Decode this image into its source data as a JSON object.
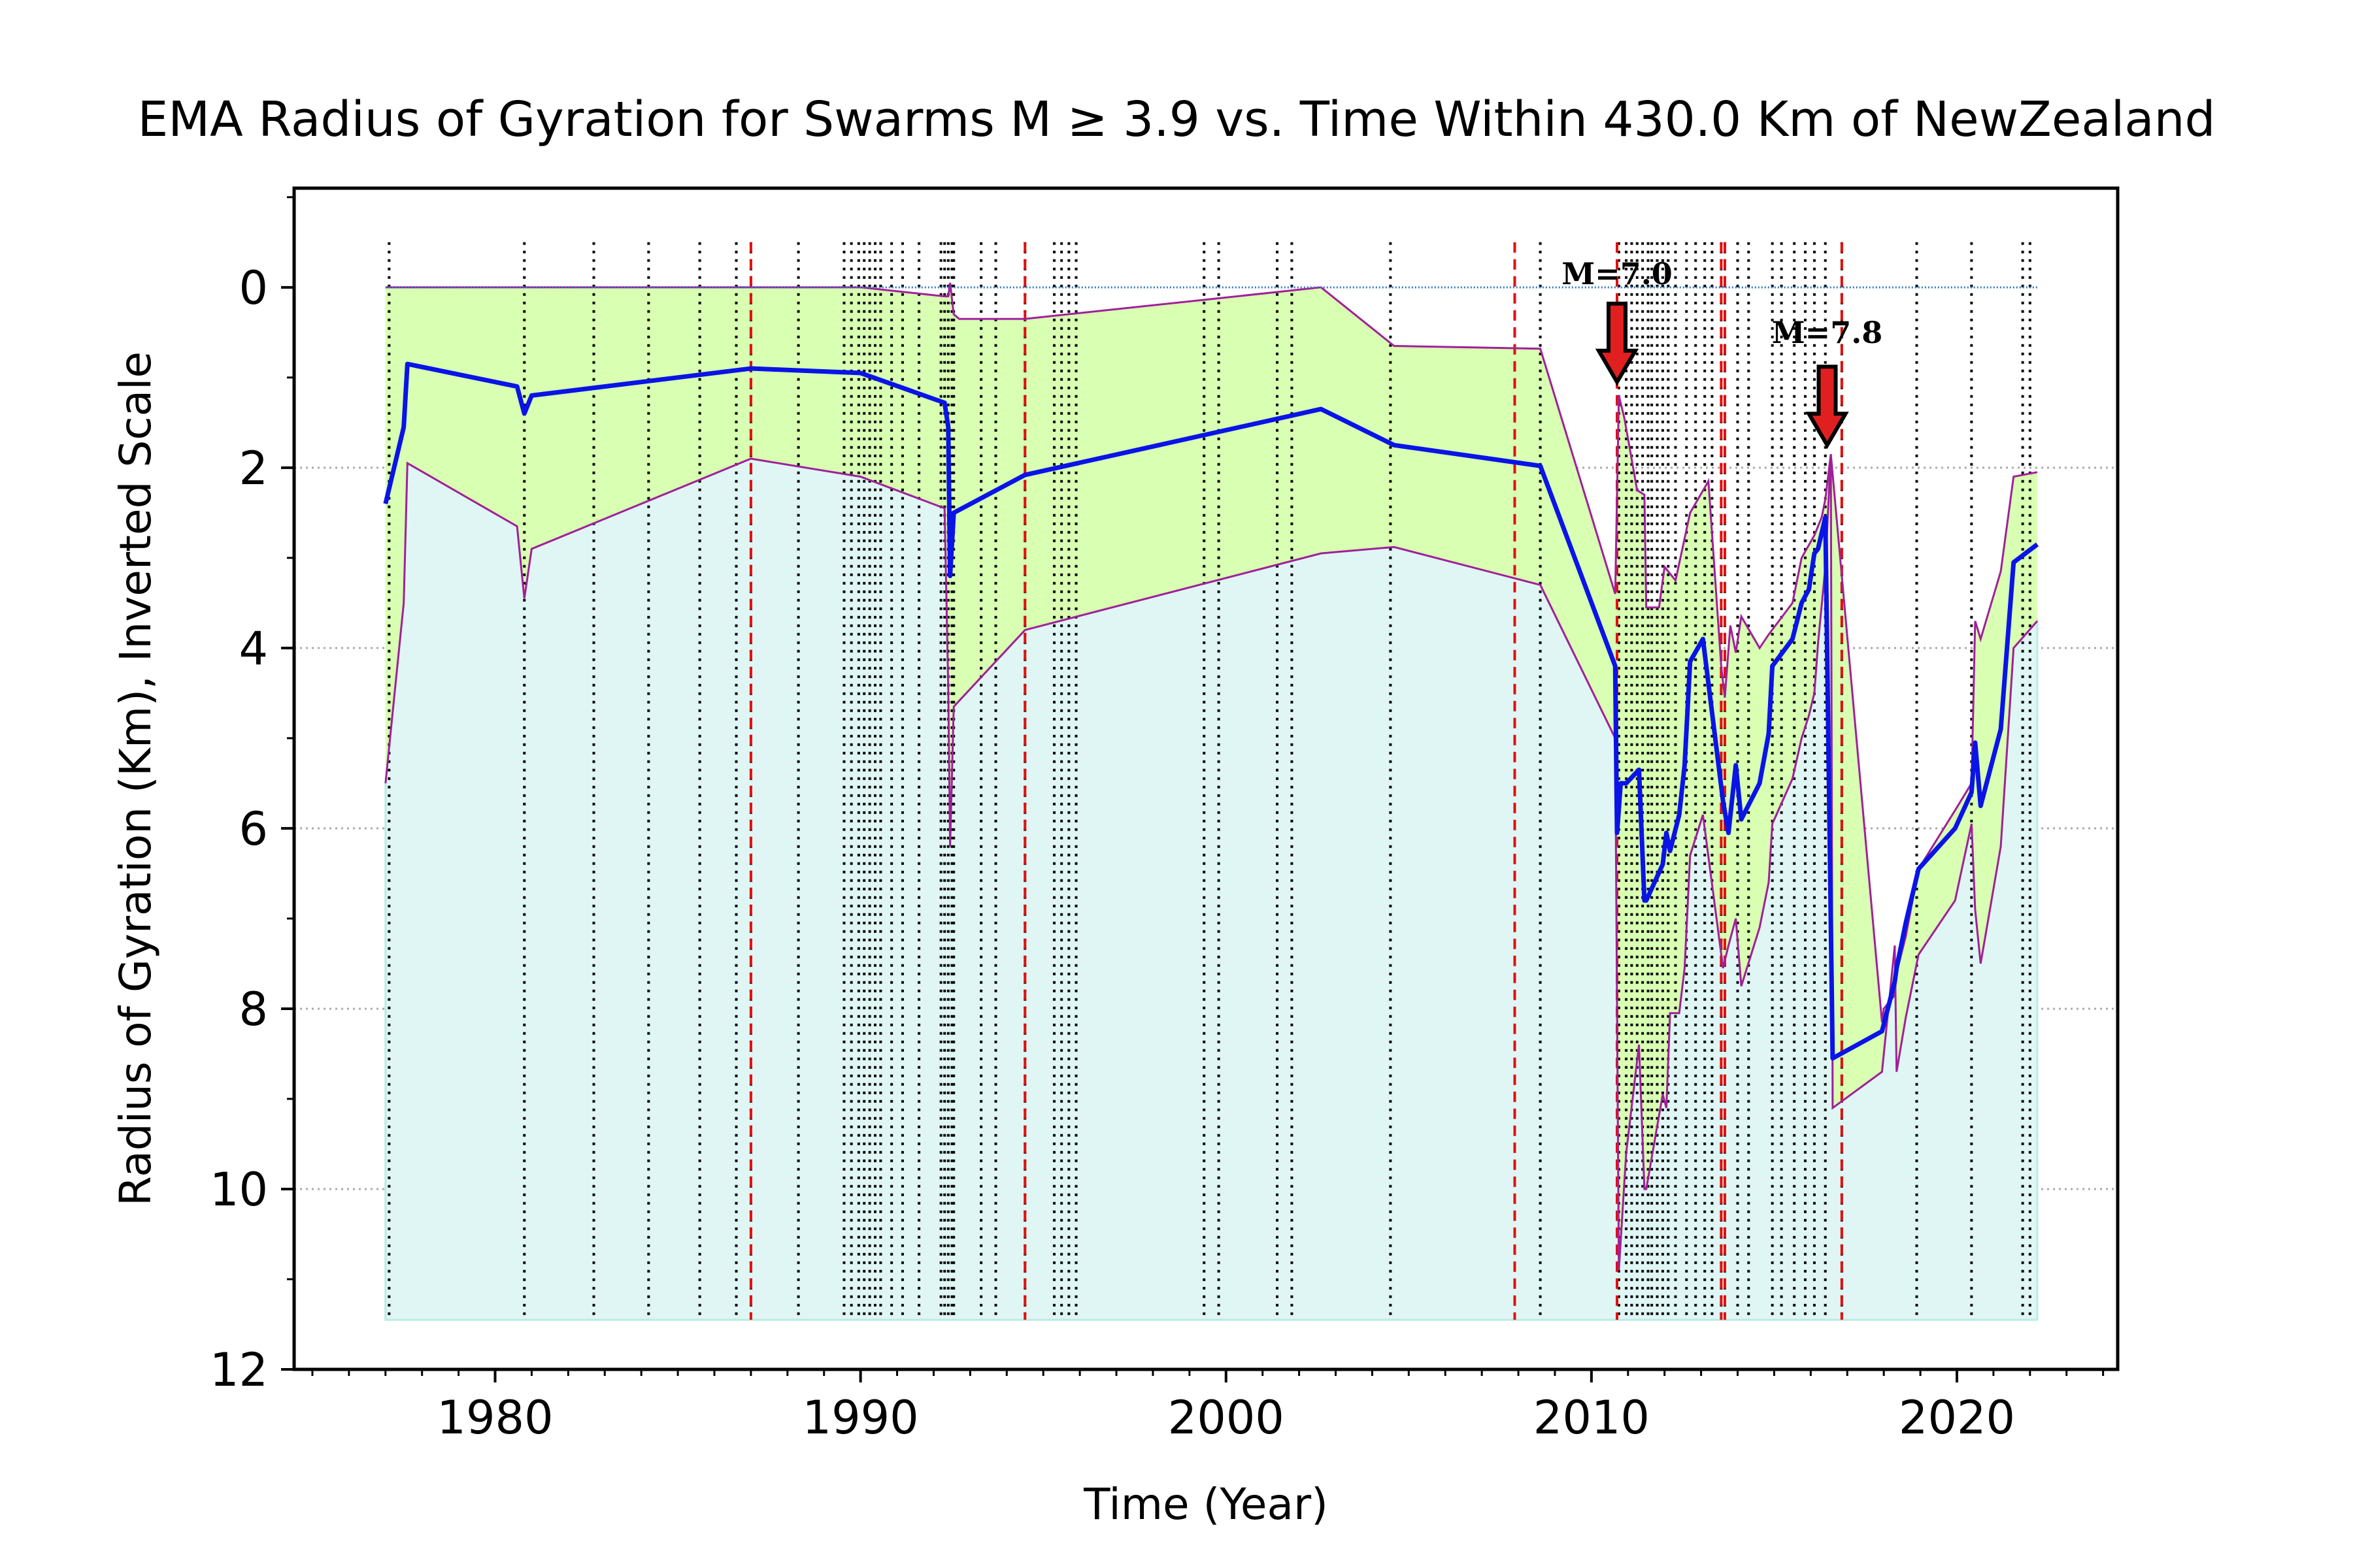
{
  "chart_data": {
    "type": "line",
    "title": "EMA Radius of Gyration for Swarms M ≥ 3.9 vs. Time Within 430.0 Km of NewZealand",
    "xlabel": "Time (Year)",
    "ylabel": "Radius of Gyration (Km), Inverted Scale",
    "xlim": [
      1974.5,
      2024.4
    ],
    "ylim": [
      12,
      -1.1
    ],
    "y_inverted": true,
    "xticks": [
      1980,
      1990,
      2000,
      2010,
      2020
    ],
    "yticks": [
      0,
      2,
      4,
      6,
      8,
      10,
      12
    ],
    "grid": "horizontal dotted",
    "base_level": 11.45,
    "colors": {
      "ema_line": "#0a14e6",
      "band_fill": "#d8ffb2",
      "band_edge": "#a0209a",
      "base_fill": "#e0f6f4",
      "zero_line": "#3a76c4",
      "event_line": "#000000",
      "large_event_line": "#e01010",
      "arrow_fill": "#e02020"
    },
    "series": [
      {
        "role": "ema",
        "x": [
          1977.0,
          1977.5,
          1977.6,
          1980.6,
          1980.8,
          1981.0,
          1987.0,
          1990.0,
          1992.3,
          1992.4,
          1992.45,
          1992.55,
          1994.5,
          2002.6,
          2004.6,
          2008.6,
          2010.65,
          2010.7,
          2010.8,
          2010.95,
          2011.3,
          2011.45,
          2011.5,
          2011.95,
          2012.05,
          2012.15,
          2012.4,
          2012.55,
          2012.7,
          2013.05,
          2013.6,
          2013.75,
          2013.95,
          2014.1,
          2014.6,
          2014.85,
          2014.95,
          2015.5,
          2015.75,
          2015.95,
          2016.1,
          2016.2,
          2016.4,
          2016.6,
          2017.95,
          2018.3,
          2018.35,
          2018.6,
          2018.95,
          2019.95,
          2020.4,
          2020.5,
          2020.65,
          2021.2,
          2021.55,
          2022.2
        ],
        "y": [
          2.4,
          1.55,
          0.85,
          1.1,
          1.4,
          1.2,
          0.9,
          0.95,
          1.28,
          1.55,
          3.2,
          2.5,
          2.08,
          1.35,
          1.75,
          1.98,
          4.2,
          6.05,
          5.5,
          5.5,
          5.35,
          6.8,
          6.8,
          6.4,
          6.05,
          6.25,
          5.85,
          5.3,
          4.15,
          3.9,
          5.7,
          6.05,
          5.3,
          5.9,
          5.5,
          4.95,
          4.2,
          3.9,
          3.5,
          3.35,
          2.95,
          2.9,
          2.55,
          8.55,
          8.25,
          7.7,
          7.55,
          7.05,
          6.45,
          6.0,
          5.6,
          5.05,
          5.75,
          4.9,
          3.05,
          2.85
        ]
      },
      {
        "role": "band_upper",
        "x": [
          1977.0,
          1990.0,
          1992.3,
          1992.4,
          1992.45,
          1992.55,
          1992.7,
          1994.5,
          2002.6,
          2004.6,
          2008.6,
          2010.65,
          2010.75,
          2010.9,
          2011.25,
          2011.45,
          2011.5,
          2011.85,
          2012.0,
          2012.3,
          2012.7,
          2013.2,
          2013.55,
          2013.65,
          2013.8,
          2013.95,
          2014.1,
          2014.6,
          2014.85,
          2015.5,
          2015.75,
          2016.1,
          2016.3,
          2016.4,
          2016.55,
          2017.95,
          2018.0,
          2018.3,
          2018.35,
          2018.6,
          2018.95,
          2019.95,
          2020.4,
          2020.5,
          2020.65,
          2021.2,
          2021.55,
          2022.2
        ],
        "y": [
          0.0,
          0.0,
          0.1,
          0.1,
          -0.05,
          0.3,
          0.35,
          0.35,
          0.0,
          0.65,
          0.68,
          3.4,
          1.2,
          1.45,
          2.25,
          2.3,
          3.55,
          3.55,
          3.1,
          3.25,
          2.5,
          2.15,
          4.2,
          4.55,
          3.75,
          4.05,
          3.65,
          4.0,
          3.85,
          3.5,
          3.0,
          2.75,
          2.55,
          2.35,
          1.85,
          8.15,
          8.0,
          7.85,
          7.6,
          7.2,
          6.45,
          5.8,
          5.5,
          3.7,
          3.9,
          3.15,
          2.1,
          2.05
        ]
      },
      {
        "role": "band_lower",
        "x": [
          1977.0,
          1977.5,
          1977.6,
          1980.6,
          1980.8,
          1981.0,
          1987.0,
          1990.0,
          1992.3,
          1992.4,
          1992.45,
          1992.55,
          1994.5,
          2002.6,
          2004.6,
          2008.6,
          2010.65,
          2010.75,
          2010.95,
          2011.3,
          2011.45,
          2011.5,
          2011.95,
          2012.05,
          2012.15,
          2012.4,
          2012.55,
          2012.7,
          2013.05,
          2013.6,
          2013.75,
          2013.95,
          2014.1,
          2014.6,
          2014.85,
          2014.95,
          2015.5,
          2015.75,
          2015.95,
          2016.1,
          2016.2,
          2016.4,
          2016.55,
          2016.6,
          2017.95,
          2018.3,
          2018.35,
          2018.6,
          2018.95,
          2019.95,
          2020.4,
          2020.5,
          2020.65,
          2021.2,
          2021.55,
          2022.2
        ],
        "y": [
          5.5,
          3.5,
          1.95,
          2.65,
          3.45,
          2.9,
          1.9,
          2.1,
          2.45,
          4.45,
          6.2,
          4.65,
          3.8,
          2.95,
          2.88,
          3.3,
          5.0,
          10.9,
          9.6,
          8.4,
          10.0,
          10.0,
          8.95,
          9.1,
          8.05,
          8.05,
          7.55,
          6.3,
          5.85,
          7.55,
          7.3,
          7.0,
          7.75,
          7.1,
          6.6,
          5.95,
          5.45,
          5.0,
          4.75,
          4.5,
          3.95,
          3.1,
          1.85,
          9.1,
          8.7,
          7.3,
          8.7,
          8.1,
          7.4,
          6.8,
          5.95,
          6.9,
          7.5,
          6.2,
          4.0,
          3.7
        ]
      }
    ],
    "event_lines": [
      1977.1,
      1980.8,
      1982.7,
      1984.2,
      1985.6,
      1986.6,
      1987.0,
      1988.3,
      1989.55,
      1989.75,
      1989.95,
      1990.1,
      1990.25,
      1990.4,
      1990.55,
      1990.85,
      1991.15,
      1991.6,
      1992.2,
      1992.3,
      1992.4,
      1992.5,
      1992.55,
      1993.3,
      1993.7,
      1994.5,
      1995.3,
      1995.5,
      1995.7,
      1995.9,
      1999.4,
      1999.8,
      2001.4,
      2001.8,
      2004.5,
      2008.6,
      2010.75,
      2010.95,
      2011.1,
      2011.25,
      2011.4,
      2011.55,
      2011.65,
      2011.8,
      2011.95,
      2012.1,
      2012.3,
      2012.6,
      2012.85,
      2013.1,
      2013.3,
      2013.55,
      2013.65,
      2014.0,
      2014.3,
      2014.95,
      2015.2,
      2015.55,
      2015.85,
      2016.1,
      2016.4,
      2016.85,
      2018.9,
      2020.4,
      2021.8,
      2022.0
    ],
    "large_event_lines": [
      1987.0,
      1994.5,
      2007.9,
      2010.7,
      2013.55,
      2013.65,
      2016.85
    ],
    "annotations": [
      {
        "label": "M=7.0",
        "x": 2010.7,
        "tip_y": 1.05,
        "label_y": -0.15
      },
      {
        "label": "M=7.8",
        "x": 2016.45,
        "tip_y": 1.75,
        "label_y": 0.5
      }
    ]
  }
}
